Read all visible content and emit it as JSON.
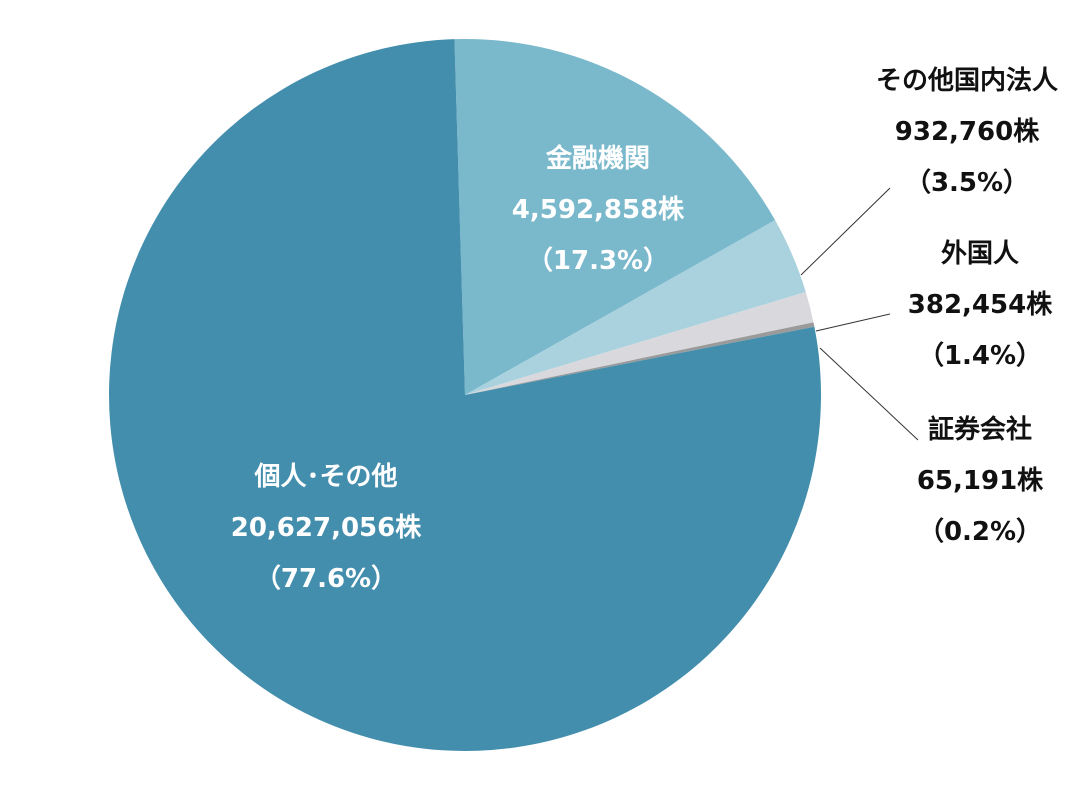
{
  "chart_data": {
    "type": "pie",
    "title": "",
    "legend": "none",
    "slices": [
      {
        "name": "金融機関",
        "shares": "4,592,858株",
        "percent_label": "（17.3%）",
        "value": 17.3,
        "color": "#7ab8cc",
        "label_color": "#ffffff"
      },
      {
        "name": "その他国内法人",
        "shares": "932,760株",
        "percent_label": "（3.5%）",
        "value": 3.5,
        "color": "#a9d2de",
        "label_color": "#111111"
      },
      {
        "name": "外国人",
        "shares": "382,454株",
        "percent_label": "（1.4%）",
        "value": 1.4,
        "color": "#d9d9dd",
        "label_color": "#111111"
      },
      {
        "name": "証券会社",
        "shares": "65,191株",
        "percent_label": "（0.2%）",
        "value": 0.2,
        "color": "#9a9a9a",
        "label_color": "#111111"
      },
      {
        "name": "個人･その他",
        "shares": "20,627,056株",
        "percent_label": "（77.6%）",
        "value": 77.6,
        "color": "#438ead",
        "label_color": "#ffffff"
      }
    ]
  }
}
